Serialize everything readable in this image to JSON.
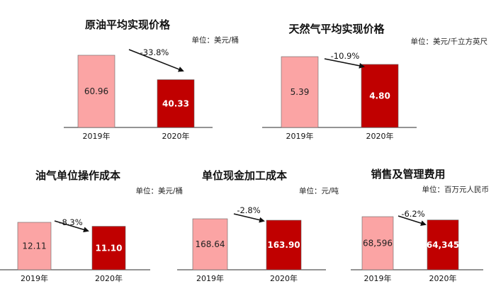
{
  "colors": {
    "y2019": "#FBA4A4",
    "y2020": "#C00000"
  },
  "chart_data": [
    {
      "type": "bar",
      "title": "原油平均实现价格",
      "unit": "单位：美元/桶",
      "categories": [
        "2019年",
        "2020年"
      ],
      "values": [
        60.96,
        40.33
      ],
      "value_labels": [
        "60.96",
        "40.33"
      ],
      "change_label": "-33.8%"
    },
    {
      "type": "bar",
      "title": "天然气平均实现价格",
      "unit": "单位：美元/千立方英尺",
      "categories": [
        "2019年",
        "2020年"
      ],
      "values": [
        5.39,
        4.8
      ],
      "value_labels": [
        "5.39",
        "4.80"
      ],
      "change_label": "-10.9%"
    },
    {
      "type": "bar",
      "title": "油气单位操作成本",
      "unit": "单位：美元/桶",
      "categories": [
        "2019年",
        "2020年"
      ],
      "values": [
        12.11,
        11.1
      ],
      "value_labels": [
        "12.11",
        "11.10"
      ],
      "change_label": "-8.3%"
    },
    {
      "type": "bar",
      "title": "单位现金加工成本",
      "unit": "单位：元/吨",
      "categories": [
        "2019年",
        "2020年"
      ],
      "values": [
        168.64,
        163.9
      ],
      "value_labels": [
        "168.64",
        "163.90"
      ],
      "change_label": "-2.8%"
    },
    {
      "type": "bar",
      "title": "销售及管理费用",
      "unit": "单位：百万元人民币",
      "categories": [
        "2019年",
        "2020年"
      ],
      "values": [
        68596,
        64345
      ],
      "value_labels": [
        "68,596",
        "64,345"
      ],
      "change_label": "-6.2%"
    }
  ]
}
